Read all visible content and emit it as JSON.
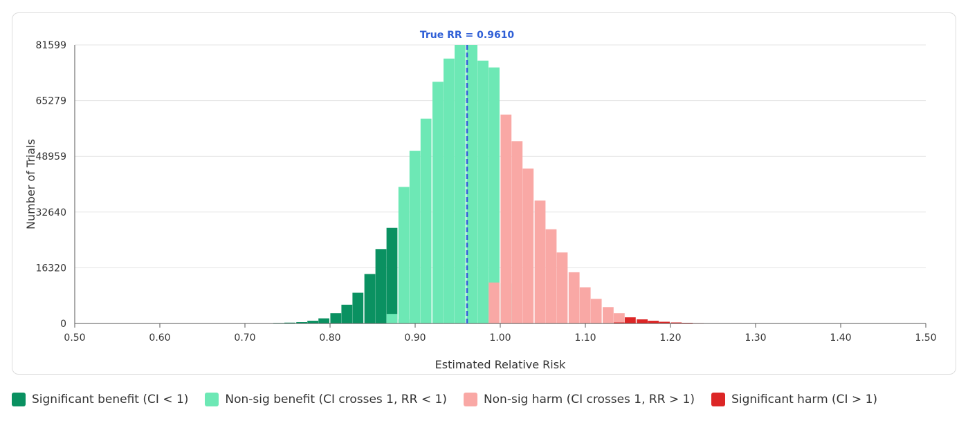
{
  "chart_data": {
    "type": "bar",
    "title": "",
    "xlabel": "Estimated Relative Risk",
    "ylabel": "Number of Trials",
    "xlim": [
      0.5,
      1.5
    ],
    "ylim": [
      0,
      81599
    ],
    "yticks": [
      "0",
      "16320",
      "32640",
      "48959",
      "65279",
      "81599"
    ],
    "xticks": [
      "0.50",
      "0.60",
      "0.70",
      "0.80",
      "0.90",
      "1.00",
      "1.10",
      "1.20",
      "1.30",
      "1.40",
      "1.50"
    ],
    "grid": true,
    "bin_width": 0.0133,
    "annotation": {
      "label": "True RR = 0.9610",
      "x": 0.961,
      "color": "#2f5fd6"
    },
    "series": [
      {
        "name": "Significant benefit (CI < 1)",
        "color": "#0a9161",
        "bins": [
          [
            0.713,
            50
          ],
          [
            0.727,
            80
          ],
          [
            0.74,
            150
          ],
          [
            0.753,
            250
          ],
          [
            0.767,
            400
          ],
          [
            0.78,
            800
          ],
          [
            0.793,
            1500
          ],
          [
            0.807,
            3000
          ],
          [
            0.82,
            5500
          ],
          [
            0.833,
            9000
          ],
          [
            0.847,
            14500
          ],
          [
            0.86,
            21800
          ],
          [
            0.873,
            28000
          ],
          [
            0.887,
            1200
          ]
        ]
      },
      {
        "name": "Non-sig benefit (CI crosses 1, RR < 1)",
        "color": "#6de8b5",
        "bins": [
          [
            0.873,
            2800
          ],
          [
            0.887,
            40000
          ],
          [
            0.9,
            50600
          ],
          [
            0.913,
            60000
          ],
          [
            0.927,
            70800
          ],
          [
            0.94,
            77600
          ],
          [
            0.953,
            81600
          ],
          [
            0.967,
            81600
          ],
          [
            0.98,
            77000
          ],
          [
            0.993,
            75000
          ],
          [
            1.007,
            11800
          ]
        ]
      },
      {
        "name": "Non-sig harm (CI crosses 1, RR > 1)",
        "color": "#f9a8a5",
        "bins": [
          [
            0.993,
            12000
          ],
          [
            1.007,
            61200
          ],
          [
            1.02,
            53400
          ],
          [
            1.033,
            45400
          ],
          [
            1.047,
            36000
          ],
          [
            1.06,
            27600
          ],
          [
            1.073,
            20800
          ],
          [
            1.087,
            15000
          ],
          [
            1.1,
            10600
          ],
          [
            1.113,
            7200
          ],
          [
            1.127,
            4800
          ],
          [
            1.14,
            3000
          ],
          [
            1.153,
            600
          ],
          [
            1.167,
            300
          ]
        ]
      },
      {
        "name": "Significant harm (CI > 1)",
        "color": "#dc2626",
        "bins": [
          [
            1.14,
            300
          ],
          [
            1.153,
            1800
          ],
          [
            1.167,
            1200
          ],
          [
            1.18,
            800
          ],
          [
            1.193,
            500
          ],
          [
            1.207,
            300
          ],
          [
            1.22,
            200
          ],
          [
            1.233,
            120
          ],
          [
            1.247,
            70
          ],
          [
            1.26,
            40
          ]
        ]
      }
    ]
  },
  "legend": [
    {
      "label": "Significant benefit (CI < 1)",
      "color": "#0a9161"
    },
    {
      "label": "Non-sig benefit (CI crosses 1, RR < 1)",
      "color": "#6de8b5"
    },
    {
      "label": "Non-sig harm (CI crosses 1, RR > 1)",
      "color": "#f9a8a5"
    },
    {
      "label": "Significant harm (CI > 1)",
      "color": "#dc2626"
    }
  ]
}
